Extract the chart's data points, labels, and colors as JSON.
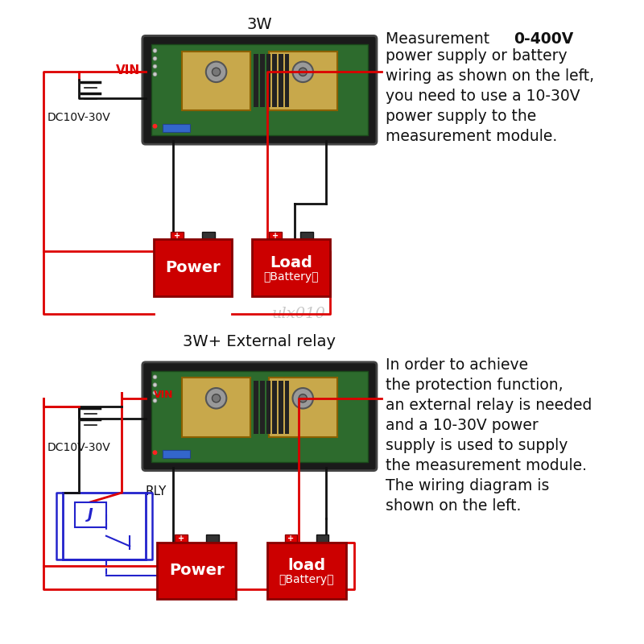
{
  "title_3w": "3W",
  "title_3w_relay": "3W+ External relay",
  "watermark": "ulx010",
  "top_text_line1a": "Measurement  ",
  "top_text_line1b": "0-400V",
  "top_text_rest": "power supply or battery\nwiring as shown on the left,\nyou need to use a 10-30V\npower supply to the\nmeasurement module.",
  "bottom_text": "In order to achieve\nthe protection function,\nan external relay is needed\nand a 10-30V power\nsupply is used to supply\nthe measurement module.\nThe wiring diagram is\nshown on the left.",
  "vin_label": "VIN",
  "dc_label": "DC10V-30V",
  "rly_label": "RLY",
  "j_label": "J",
  "power_label": "Power",
  "load_label_top": "Load",
  "load_label_bottom": "（Battery）",
  "load2_label_top": "load",
  "load2_label_bottom": "（Battery）",
  "red": "#dd0000",
  "black": "#111111",
  "blue": "#2222cc",
  "module_fill": "#1a1a1a",
  "pcb_fill": "#2d6b2d",
  "shunt_fill": "#c8a84b",
  "text_color": "#1a1a1a",
  "power_box_color": "#cc0000",
  "load_box_color": "#cc0000",
  "bg_color": "#ffffff"
}
